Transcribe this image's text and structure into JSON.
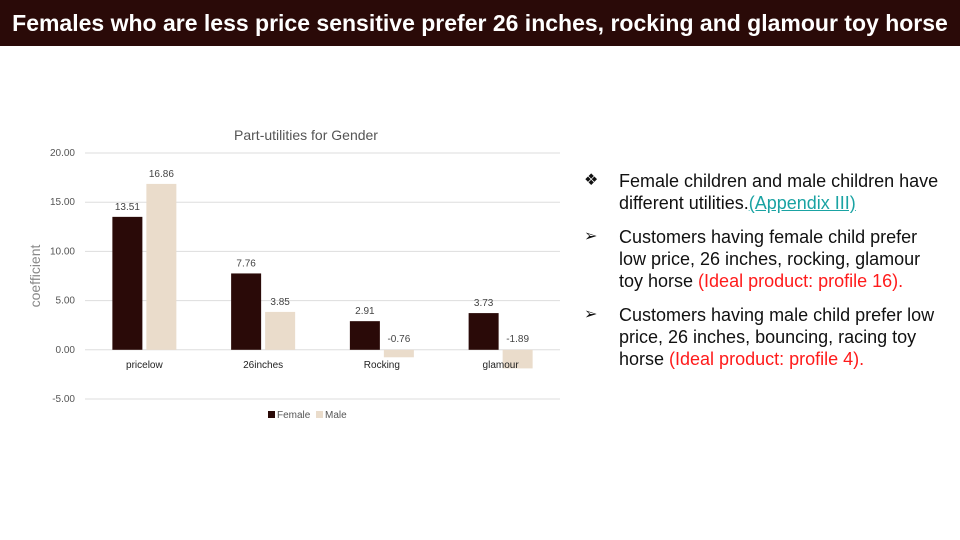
{
  "slide": {
    "title": "Females who are less price sensitive prefer 26 inches, rocking and glamour toy horse"
  },
  "colors": {
    "title_bg": "#2a0a08",
    "female": "#2a0a08",
    "male": "#eadccb",
    "accent": "#ff1a1a",
    "link": "#1aa3a3"
  },
  "chart_data": {
    "type": "bar",
    "title": "Part-utilities for Gender",
    "ylabel": "coefficient",
    "xlabel": "",
    "categories": [
      "pricelow",
      "26inches",
      "Rocking",
      "glamour"
    ],
    "series": [
      {
        "name": "Female",
        "values": [
          13.51,
          7.76,
          2.91,
          3.73
        ],
        "labels": [
          "13.51",
          "7.76",
          "2.91",
          "3.73"
        ]
      },
      {
        "name": "Male",
        "values": [
          16.86,
          3.85,
          -0.76,
          -1.89
        ],
        "labels": [
          "16.86",
          "3.85",
          "-0.76",
          "-1.89"
        ]
      }
    ],
    "ylim": [
      -5,
      20
    ],
    "yticks": [
      "20.00",
      "15.00",
      "10.00",
      "5.00",
      "0.00",
      "-5.00"
    ],
    "yticks_values": [
      20,
      15,
      10,
      5,
      0,
      -5
    ],
    "grid": true,
    "legend": "bottom"
  },
  "bullets": [
    {
      "marker": "❖",
      "text": "Female children and male children have different utilities.",
      "link": "(Appendix III)",
      "highlight": ""
    },
    {
      "marker": "➢",
      "text": "Customers having female child prefer low price, 26 inches, rocking, glamour toy horse ",
      "link": "",
      "highlight": "(Ideal product: profile 16)."
    },
    {
      "marker": "➢",
      "text": "Customers having male child prefer low price, 26 inches, bouncing, racing toy horse ",
      "link": "",
      "highlight": "(Ideal product: profile 4)."
    }
  ]
}
